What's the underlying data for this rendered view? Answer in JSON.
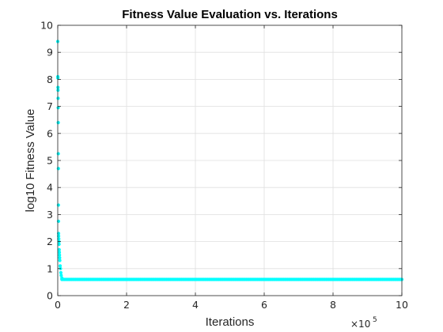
{
  "chart_data": {
    "type": "scatter",
    "title": "Fitness Value Evaluation vs. Iterations",
    "xlabel": "Iterations",
    "ylabel": "log10 Fitness Value",
    "xlim": [
      0,
      1000000
    ],
    "ylim": [
      0,
      10
    ],
    "x_tick_values": [
      0,
      200000,
      400000,
      600000,
      800000,
      1000000
    ],
    "x_tick_labels": [
      "0",
      "2",
      "4",
      "6",
      "8",
      "10"
    ],
    "x_exponent_base": "×10",
    "x_exponent_power": "5",
    "y_tick_values": [
      0,
      1,
      2,
      3,
      4,
      5,
      6,
      7,
      8,
      9,
      10
    ],
    "y_tick_labels": [
      "0",
      "1",
      "2",
      "3",
      "4",
      "5",
      "6",
      "7",
      "8",
      "9",
      "10"
    ],
    "grid": true,
    "marker_color": "#00FFFF",
    "series": [
      {
        "early_points": [
          {
            "x": 0,
            "y": 9.4
          },
          {
            "x": 200,
            "y": 8.1
          },
          {
            "x": 400,
            "y": 8.05
          },
          {
            "x": 600,
            "y": 7.7
          },
          {
            "x": 800,
            "y": 7.6
          },
          {
            "x": 1000,
            "y": 7.3
          },
          {
            "x": 1200,
            "y": 6.95
          },
          {
            "x": 1400,
            "y": 6.4
          },
          {
            "x": 1600,
            "y": 5.25
          },
          {
            "x": 1800,
            "y": 4.7
          },
          {
            "x": 2000,
            "y": 3.35
          },
          {
            "x": 2200,
            "y": 2.75
          },
          {
            "x": 2400,
            "y": 2.3
          },
          {
            "x": 2600,
            "y": 2.2
          },
          {
            "x": 3000,
            "y": 2.1
          },
          {
            "x": 3400,
            "y": 2.0
          },
          {
            "x": 3800,
            "y": 1.9
          },
          {
            "x": 4200,
            "y": 1.7
          },
          {
            "x": 4600,
            "y": 1.6
          },
          {
            "x": 5000,
            "y": 1.5
          },
          {
            "x": 5500,
            "y": 1.4
          },
          {
            "x": 6000,
            "y": 1.3
          },
          {
            "x": 7000,
            "y": 1.1
          },
          {
            "x": 8000,
            "y": 1.0
          },
          {
            "x": 9000,
            "y": 0.85
          },
          {
            "x": 10000,
            "y": 0.75
          },
          {
            "x": 12000,
            "y": 0.65
          }
        ],
        "plateau": {
          "x_start": 12000,
          "x_end": 1000000,
          "y": 0.6,
          "step": 4000
        }
      }
    ]
  }
}
